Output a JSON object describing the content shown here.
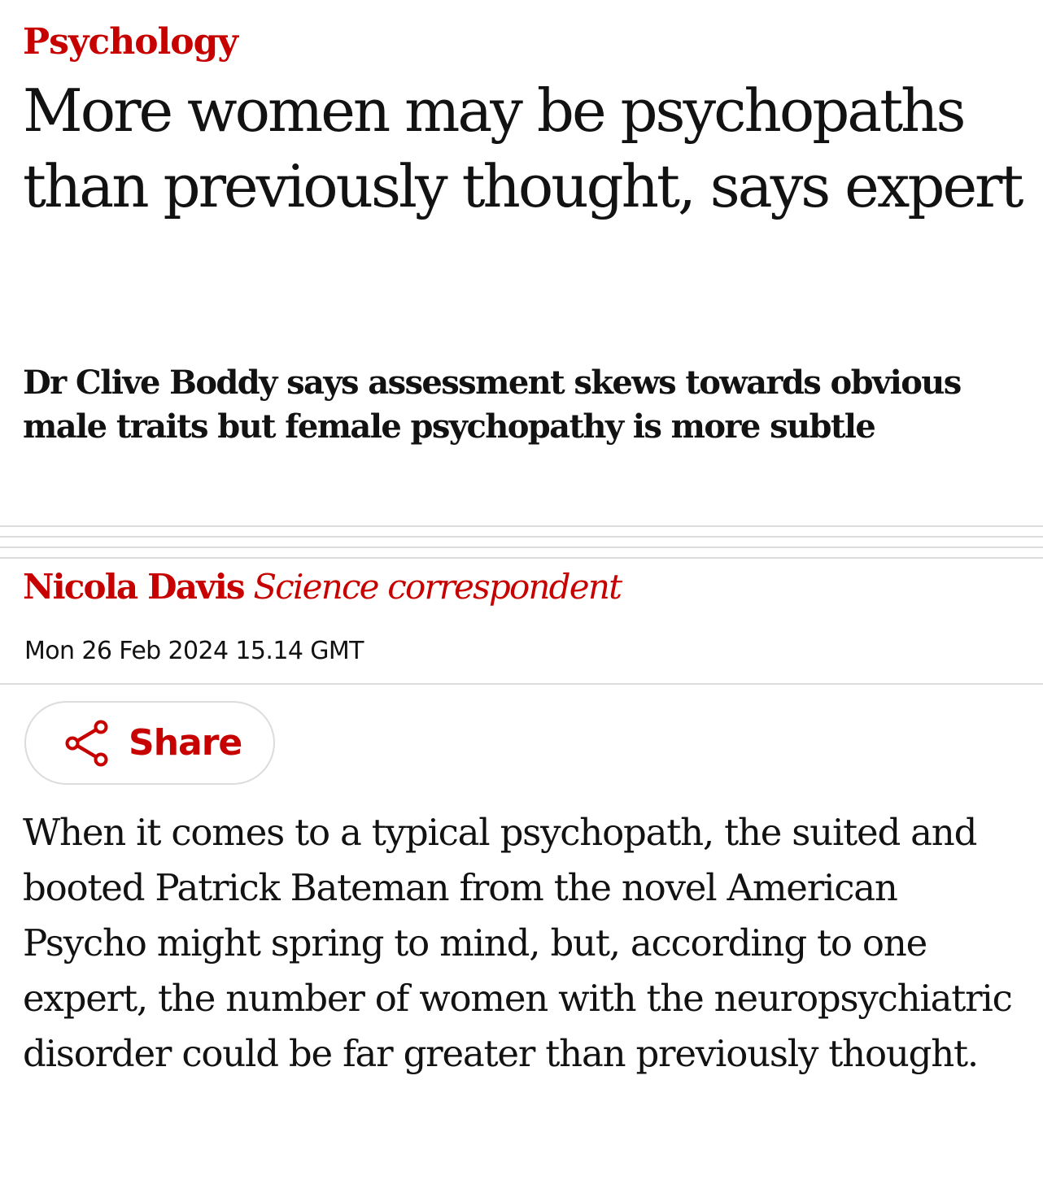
{
  "article": {
    "section": "Psychology",
    "headline": "More women may be psychopaths than previously thought, says expert",
    "standfirst": "Dr Clive Boddy says assessment skews towards obvious male traits but female psychopathy is more subtle",
    "byline": {
      "author": "Nicola Davis",
      "role": "Science correspondent"
    },
    "date": "Mon 26 Feb 2024 15.14 GMT",
    "share": {
      "label": "Share",
      "icon": "share-icon"
    },
    "body": "When it comes to a typical psychopath, the suited and booted Patrick Bateman from the novel American Psycho might spring to mind, but, according to one expert, the number of women with the neuropsychiatric disorder could be far greater than previously thought."
  },
  "colors": {
    "accent": "#c70000",
    "text": "#121212",
    "rule": "#dcdcdc",
    "background": "#ffffff"
  }
}
